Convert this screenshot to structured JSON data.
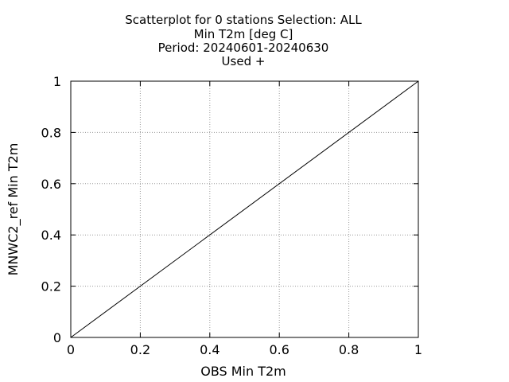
{
  "chart_data": {
    "type": "scatter",
    "title_lines": [
      "Scatterplot for    0 stations Selection: ALL",
      "Min T2m [deg C]",
      "Period: 20240601-20240630",
      "Used  +"
    ],
    "xlabel": "OBS Min T2m",
    "ylabel": "MNWC2_ref Min T2m",
    "xlim": [
      0,
      1
    ],
    "ylim": [
      0,
      1
    ],
    "x_ticks": [
      "0",
      "0.2",
      "0.4",
      "0.6",
      "0.8",
      "1"
    ],
    "y_ticks": [
      "0",
      "0.2",
      "0.4",
      "0.6",
      "0.8",
      "1"
    ],
    "grid": true,
    "reference_line": {
      "x": [
        0,
        1
      ],
      "y": [
        0,
        1
      ]
    },
    "series": [
      {
        "marker": "+",
        "x": [],
        "y": []
      }
    ]
  }
}
